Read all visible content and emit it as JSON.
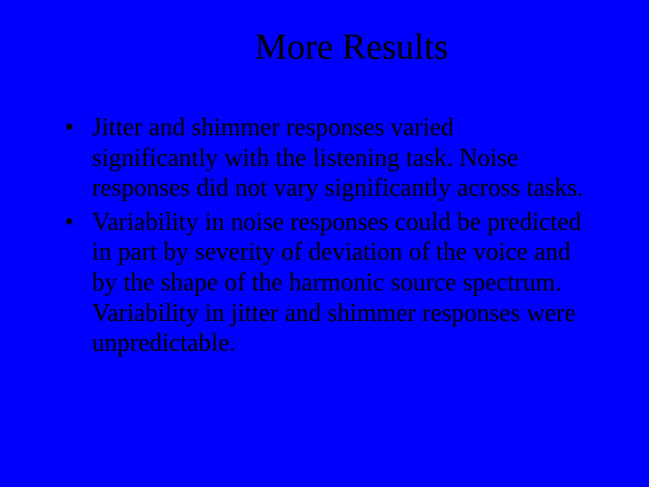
{
  "slide": {
    "background_color": "#0000ff",
    "text_color": "#000000",
    "font_family": "Times New Roman",
    "title": "More Results",
    "title_fontsize": 40,
    "body_fontsize": 28,
    "bullets": [
      "Jitter and shimmer responses varied significantly with the listening task.  Noise responses did not vary significantly across tasks.",
      "Variability in noise responses could be predicted in part by severity of deviation of the voice and by the shape of the harmonic source spectrum.  Variability in jitter and shimmer responses were unpredictable."
    ]
  }
}
